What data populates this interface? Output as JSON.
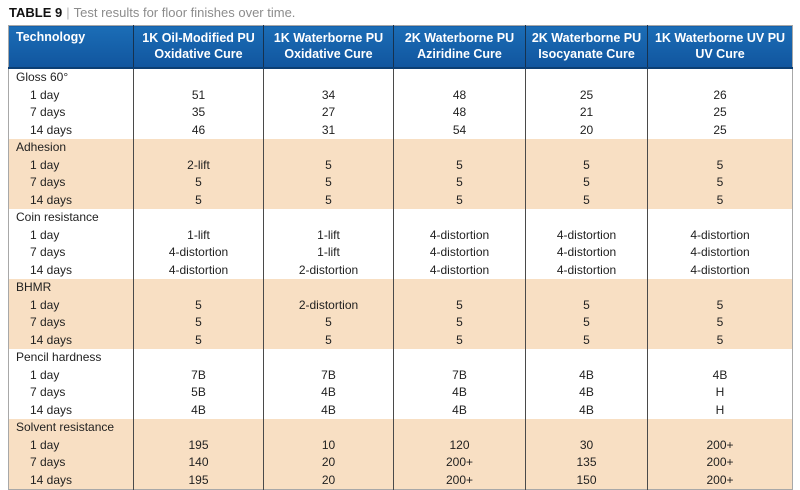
{
  "title": {
    "label": "TABLE 9",
    "separator": "|",
    "caption": "Test results for floor finishes over time."
  },
  "table": {
    "columns": [
      {
        "label": "Technology"
      },
      {
        "line1": "1K Oil-Modified PU",
        "line2": "Oxidative Cure"
      },
      {
        "line1": "1K Waterborne PU",
        "line2": "Oxidative Cure"
      },
      {
        "line1": "2K Waterborne PU",
        "line2": "Aziridine Cure"
      },
      {
        "line1": "2K Waterborne PU",
        "line2": "Isocyanate Cure"
      },
      {
        "line1": "1K Waterborne UV PU",
        "line2": "UV Cure"
      }
    ],
    "sections": [
      {
        "name": "Gloss 60°",
        "rows": [
          {
            "label": "1 day",
            "values": [
              "51",
              "34",
              "48",
              "25",
              "26"
            ]
          },
          {
            "label": "7 days",
            "values": [
              "35",
              "27",
              "48",
              "21",
              "25"
            ]
          },
          {
            "label": "14 days",
            "values": [
              "46",
              "31",
              "54",
              "20",
              "25"
            ]
          }
        ]
      },
      {
        "name": "Adhesion",
        "rows": [
          {
            "label": "1 day",
            "values": [
              "2-lift",
              "5",
              "5",
              "5",
              "5"
            ]
          },
          {
            "label": "7 days",
            "values": [
              "5",
              "5",
              "5",
              "5",
              "5"
            ]
          },
          {
            "label": "14 days",
            "values": [
              "5",
              "5",
              "5",
              "5",
              "5"
            ]
          }
        ]
      },
      {
        "name": "Coin resistance",
        "rows": [
          {
            "label": "1 day",
            "values": [
              "1-lift",
              "1-lift",
              "4-distortion",
              "4-distortion",
              "4-distortion"
            ]
          },
          {
            "label": "7 days",
            "values": [
              "4-distortion",
              "1-lift",
              "4-distortion",
              "4-distortion",
              "4-distortion"
            ]
          },
          {
            "label": "14 days",
            "values": [
              "4-distortion",
              "2-distortion",
              "4-distortion",
              "4-distortion",
              "4-distortion"
            ]
          }
        ]
      },
      {
        "name": "BHMR",
        "rows": [
          {
            "label": "1 day",
            "values": [
              "5",
              "2-distortion",
              "5",
              "5",
              "5"
            ]
          },
          {
            "label": "7 days",
            "values": [
              "5",
              "5",
              "5",
              "5",
              "5"
            ]
          },
          {
            "label": "14 days",
            "values": [
              "5",
              "5",
              "5",
              "5",
              "5"
            ]
          }
        ]
      },
      {
        "name": "Pencil hardness",
        "rows": [
          {
            "label": "1 day",
            "values": [
              "7B",
              "7B",
              "7B",
              "4B",
              "4B"
            ]
          },
          {
            "label": "7 days",
            "values": [
              "5B",
              "4B",
              "4B",
              "4B",
              "H"
            ]
          },
          {
            "label": "14 days",
            "values": [
              "4B",
              "4B",
              "4B",
              "4B",
              "H"
            ]
          }
        ]
      },
      {
        "name": "Solvent resistance",
        "rows": [
          {
            "label": "1 day",
            "values": [
              "195",
              "10",
              "120",
              "30",
              "200+"
            ]
          },
          {
            "label": "7 days",
            "values": [
              "140",
              "20",
              "200+",
              "135",
              "200+"
            ]
          },
          {
            "label": "14 days",
            "values": [
              "195",
              "20",
              "200+",
              "150",
              "200+"
            ]
          }
        ]
      }
    ]
  },
  "colors": {
    "header_blue": "#11559e",
    "header_blue_light": "#1b6db6",
    "header_blue_dark": "#0c3e73",
    "header_divider": "#16324f",
    "peach": "#f8dfc3",
    "divider_gray": "#4a4a4a",
    "outer_border": "#a8a8a8",
    "title_gray": "#8c8c8c",
    "text_dark": "#1f1f1f"
  }
}
